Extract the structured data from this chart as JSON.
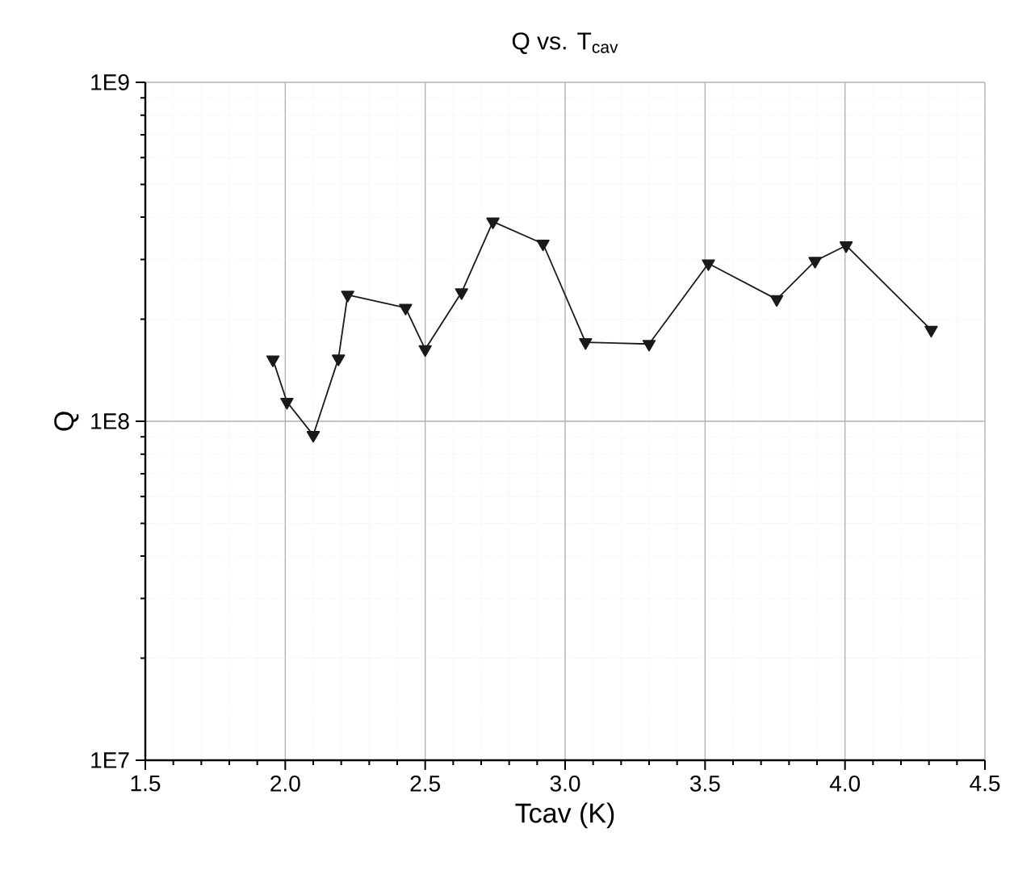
{
  "chart_data": {
    "type": "line",
    "title": "Q vs. T$_{cav}$",
    "xlabel": "Tcav (K)",
    "ylabel": "Q",
    "x": [
      1.956,
      2.006,
      2.1,
      2.19,
      2.223,
      2.43,
      2.5,
      2.63,
      2.742,
      2.921,
      3.073,
      3.3,
      3.512,
      3.756,
      3.893,
      4.004,
      4.308
    ],
    "series": [
      {
        "color": "#1a1a1a",
        "values": [
          152000000.0,
          114000000.0,
          91000000.0,
          153000000.0,
          236000000.0,
          216000000.0,
          163000000.0,
          240000000.0,
          388000000.0,
          334000000.0,
          171000000.0,
          169000000.0,
          292000000.0,
          229000000.0,
          297000000.0,
          330000000.0,
          186000000.0
        ]
      }
    ],
    "xlim": [
      1.5,
      4.5
    ],
    "ylim": [
      10000000.0,
      1000000000.0
    ],
    "log": "y",
    "xticks": [
      1.5,
      {
        "value": 2.0,
        "label": "2.0"
      },
      2.5,
      {
        "value": 3.0,
        "label": "3.0"
      },
      3.5,
      {
        "value": 4.0,
        "label": "4.0"
      },
      4.5
    ],
    "yticks": [
      {
        "value": 10000000.0,
        "label": "1E7"
      },
      {
        "value": 100000000.0,
        "label": "1E8"
      },
      {
        "value": 1000000000.0,
        "label": "1E9"
      }
    ],
    "grid": true,
    "marker": "triangle",
    "line_style": "solid"
  }
}
